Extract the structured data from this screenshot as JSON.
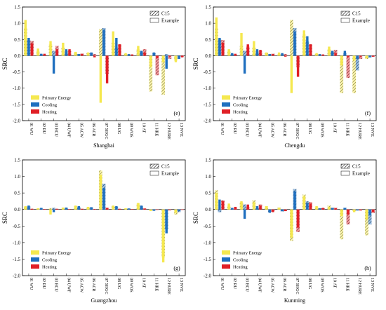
{
  "legend_top": {
    "c15": "C15",
    "example": "Example"
  },
  "legend_bottom": {
    "primary": "Primary Energy",
    "cooling": "Cooling",
    "heating": "Heating"
  },
  "colors": {
    "primary": "#f5e84f",
    "cooling": "#1f6fbf",
    "heating": "#e01f26",
    "axis": "#000000",
    "hatch": "#8a7f2e"
  },
  "chart_data": [
    {
      "type": "bar",
      "panel_label": "(e)",
      "xlabel": "Shanghai",
      "ylabel": "SRC",
      "ylim": [
        -2.0,
        1.5
      ],
      "yticks": [
        "1.5",
        "1.0",
        "0.5",
        "0.0",
        "-0.5",
        "-1.0",
        "-1.5",
        "-2.0"
      ],
      "categories": [
        "01 WU",
        "02 RU",
        "03 BCU",
        "04 UWF",
        "05 ACW",
        "06 ACR",
        "07 SHGC",
        "08 UG",
        "09 WOS",
        "10 AT",
        "11 HRE",
        "12 HURE",
        "13 NVE"
      ],
      "series": [
        {
          "name": "Primary Energy",
          "c15": [
            0.85,
            0.15,
            0.35,
            0.25,
            0.1,
            0.08,
            0.82,
            0.4,
            0.05,
            0.2,
            -1.1,
            -1.2,
            -0.15
          ],
          "example": [
            1.1,
            0.22,
            0.45,
            0.4,
            0.12,
            0.1,
            -1.45,
            0.75,
            0.08,
            0.3,
            -0.35,
            -0.2,
            -0.2
          ]
        },
        {
          "name": "Cooling",
          "c15": [
            0.48,
            0.04,
            0.15,
            0.1,
            0.05,
            0.08,
            0.85,
            0.25,
            0.03,
            0.12,
            0.08,
            0.05,
            -0.05
          ],
          "example": [
            0.55,
            0.06,
            -0.55,
            0.2,
            0.05,
            0.1,
            0.8,
            0.55,
            0.05,
            0.15,
            0.1,
            -0.4,
            -0.1
          ]
        },
        {
          "name": "Heating",
          "c15": [
            0.45,
            0.03,
            0.3,
            0.15,
            0.06,
            0.05,
            -0.55,
            0.35,
            0.03,
            0.2,
            -0.6,
            -0.1,
            -0.03
          ],
          "example": [
            0.38,
            0.06,
            0.2,
            0.2,
            0.06,
            -0.05,
            -0.85,
            0.35,
            0.04,
            0.1,
            -0.08,
            -0.03,
            -0.05
          ]
        }
      ]
    },
    {
      "type": "bar",
      "panel_label": "(f)",
      "xlabel": "Chengdu",
      "ylabel": "SRC",
      "ylim": [
        -2.0,
        1.5
      ],
      "yticks": [
        "1.5",
        "1.0",
        "0.5",
        "0.0",
        "-0.5",
        "-1.0",
        "-1.5",
        "-2.0"
      ],
      "categories": [
        "01 WU",
        "02 RU",
        "03 BCU",
        "04 UWF",
        "05 ACW",
        "06 ACR",
        "07 SHGC",
        "08 UG",
        "09 WOS",
        "10 AT",
        "11 HRE",
        "12 HURE",
        "13 NVE"
      ],
      "series": [
        {
          "name": "Primary Energy",
          "c15": [
            0.85,
            0.15,
            0.3,
            0.25,
            0.08,
            0.05,
            1.1,
            0.65,
            0.05,
            0.2,
            -1.15,
            -1.15,
            -0.1
          ],
          "example": [
            1.18,
            0.2,
            0.7,
            0.45,
            0.1,
            0.1,
            -1.15,
            0.78,
            0.08,
            0.28,
            -0.3,
            -0.15,
            -0.08
          ]
        },
        {
          "name": "Cooling",
          "c15": [
            0.5,
            0.05,
            0.15,
            0.1,
            0.05,
            0.05,
            0.85,
            0.45,
            0.03,
            0.12,
            0.08,
            -0.45,
            -0.05
          ],
          "example": [
            0.55,
            0.08,
            -0.55,
            0.2,
            0.05,
            0.08,
            0.75,
            0.6,
            0.05,
            0.15,
            0.15,
            -0.1,
            -0.05
          ]
        },
        {
          "name": "Heating",
          "c15": [
            0.48,
            0.03,
            0.28,
            0.15,
            0.06,
            0.05,
            -0.35,
            0.35,
            0.03,
            0.18,
            -0.68,
            -0.1,
            -0.03
          ],
          "example": [
            0.4,
            0.06,
            0.35,
            0.18,
            0.05,
            -0.03,
            -0.65,
            0.35,
            0.04,
            0.08,
            -0.05,
            -0.03,
            -0.03
          ]
        }
      ]
    },
    {
      "type": "bar",
      "panel_label": "(g)",
      "xlabel": "Guangzhou",
      "ylabel": "SRC",
      "ylim": [
        -2.0,
        1.5
      ],
      "yticks": [
        "1.5",
        "1.0",
        "0.5",
        "0.0",
        "-0.5",
        "-1.0",
        "-1.5",
        "-2.0"
      ],
      "categories": [
        "01 WU",
        "02 RU",
        "03 BCU",
        "04 UWF",
        "05 ACW",
        "06 ACR",
        "07 SHGC",
        "08 UG",
        "09 WOS",
        "10 AT",
        "11 HRE",
        "12 HURE",
        "13 NVE"
      ],
      "series": [
        {
          "name": "Primary Energy",
          "c15": [
            0.08,
            0.03,
            0.04,
            0.05,
            0.1,
            0.05,
            1.18,
            0.1,
            0.03,
            0.18,
            -0.03,
            -1.45,
            -0.15
          ],
          "example": [
            0.1,
            0.04,
            -0.15,
            0.06,
            0.12,
            0.08,
            1.05,
            0.12,
            0.04,
            0.2,
            -0.05,
            -1.6,
            -0.1
          ]
        },
        {
          "name": "Cooling",
          "c15": [
            0.1,
            0.04,
            0.05,
            0.05,
            0.08,
            0.06,
            0.78,
            0.08,
            0.03,
            0.1,
            -0.03,
            -0.6,
            -0.08
          ],
          "example": [
            0.12,
            0.05,
            -0.08,
            0.06,
            0.1,
            0.07,
            0.65,
            0.1,
            0.03,
            0.12,
            -0.04,
            -0.72,
            -0.05
          ]
        },
        {
          "name": "Heating",
          "c15": [
            0.02,
            0.01,
            0.02,
            0.01,
            0.02,
            0.01,
            0.05,
            0.02,
            0.01,
            0.03,
            -0.01,
            -0.02,
            -0.01
          ],
          "example": [
            0.02,
            0.01,
            0.02,
            0.01,
            0.02,
            0.01,
            0.05,
            0.02,
            0.01,
            0.03,
            -0.01,
            -0.02,
            -0.01
          ]
        }
      ]
    },
    {
      "type": "bar",
      "panel_label": "(h)",
      "xlabel": "Kunming",
      "ylabel": "SRC",
      "ylim": [
        -2.0,
        1.5
      ],
      "yticks": [
        "1.5",
        "1.0",
        "0.5",
        "0.0",
        "-0.5",
        "-1.0",
        "-1.5",
        "-2.0"
      ],
      "categories": [
        "01 WU",
        "02 RU",
        "03 BCU",
        "04 UWF",
        "05 ACW",
        "06 ACR",
        "07 SHGC",
        "08 UG",
        "09 WOS",
        "10 AT",
        "11 HRE",
        "12 HURE",
        "13 NVE"
      ],
      "series": [
        {
          "name": "Primary Energy",
          "c15": [
            0.58,
            0.12,
            0.22,
            0.28,
            0.1,
            0.05,
            -0.95,
            0.45,
            0.08,
            0.12,
            -0.9,
            -0.05,
            -0.78
          ],
          "example": [
            0.5,
            0.18,
            0.25,
            0.22,
            0.1,
            0.06,
            -0.85,
            0.4,
            0.1,
            0.08,
            -0.2,
            -0.08,
            -0.3
          ]
        },
        {
          "name": "Cooling",
          "c15": [
            -0.08,
            0.03,
            0.15,
            0.05,
            -0.08,
            -0.06,
            0.62,
            0.25,
            0.03,
            0.05,
            0.05,
            -0.02,
            -0.45
          ],
          "example": [
            0.3,
            0.05,
            -0.28,
            0.1,
            -0.1,
            -0.05,
            0.55,
            0.2,
            0.04,
            0.05,
            0.05,
            -0.03,
            -0.18
          ]
        },
        {
          "name": "Heating",
          "c15": [
            0.28,
            0.06,
            0.08,
            0.15,
            -0.05,
            -0.04,
            -0.68,
            0.22,
            0.04,
            0.05,
            -0.45,
            -0.02,
            -0.1
          ],
          "example": [
            0.25,
            0.08,
            0.15,
            0.12,
            -0.08,
            -0.05,
            -0.55,
            0.18,
            0.05,
            0.04,
            -0.15,
            -0.03,
            -0.08
          ]
        }
      ]
    }
  ]
}
